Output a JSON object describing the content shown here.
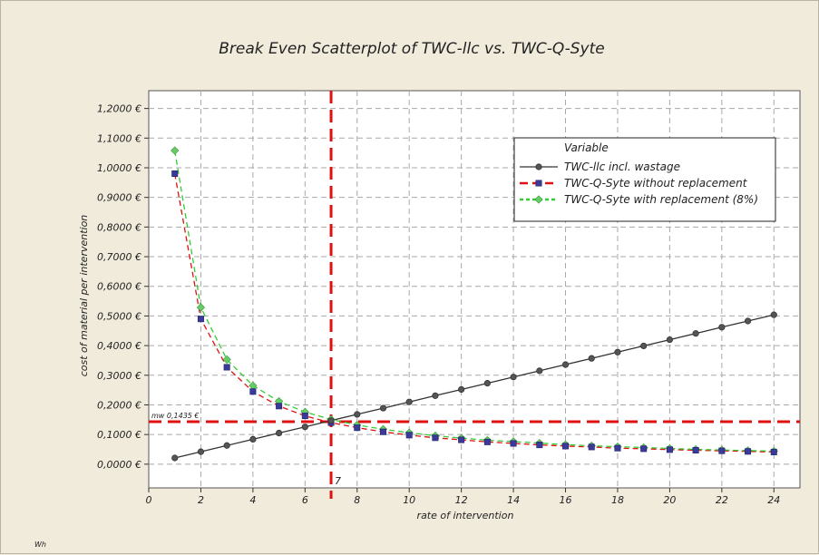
{
  "chart_data": {
    "type": "line",
    "title": "Break Even Scatterplot of TWC-llc vs. TWC-Q-Syte",
    "xlabel": "rate of intervention",
    "ylabel": "cost of material per intervention",
    "xlim": [
      0,
      25
    ],
    "ylim": [
      -0.08,
      1.26
    ],
    "x_ticks": [
      0,
      2,
      4,
      6,
      8,
      10,
      12,
      14,
      16,
      18,
      20,
      22,
      24
    ],
    "x_tick_labels": [
      "0",
      "2",
      "4",
      "6",
      "8",
      "10",
      "12",
      "14",
      "16",
      "18",
      "20",
      "22",
      "24"
    ],
    "y_ticks": [
      0.0,
      0.1,
      0.2,
      0.3,
      0.4,
      0.5,
      0.6,
      0.7,
      0.8,
      0.9,
      1.0,
      1.1,
      1.2
    ],
    "y_tick_labels": [
      "0,0000 €",
      "0,1000 €",
      "0,2000 €",
      "0,3000 €",
      "0,4000 €",
      "0,5000 €",
      "0,6000 €",
      "0,7000 €",
      "0,8000 €",
      "0,9000 €",
      "1,0000 €",
      "1,1000 €",
      "1,2000 €"
    ],
    "grid": true,
    "legend_position": "top-right",
    "legend_title": "Variable",
    "x": [
      1,
      2,
      3,
      4,
      5,
      6,
      7,
      8,
      9,
      10,
      11,
      12,
      13,
      14,
      15,
      16,
      17,
      18,
      19,
      20,
      21,
      22,
      23,
      24
    ],
    "series": [
      {
        "name": "TWC-llc incl. wastage",
        "color": "#333333",
        "marker": "circle",
        "line": "solid",
        "values": [
          0.021,
          0.042,
          0.063,
          0.084,
          0.105,
          0.126,
          0.147,
          0.168,
          0.189,
          0.21,
          0.231,
          0.252,
          0.273,
          0.294,
          0.315,
          0.336,
          0.357,
          0.378,
          0.399,
          0.42,
          0.441,
          0.462,
          0.483,
          0.504
        ]
      },
      {
        "name": "TWC-Q-Syte without replacement",
        "color": "#e01010",
        "marker_color": "#3a3a9a",
        "marker": "square",
        "line": "dashed",
        "values": [
          0.98,
          0.49,
          0.327,
          0.245,
          0.196,
          0.163,
          0.14,
          0.123,
          0.109,
          0.098,
          0.089,
          0.082,
          0.075,
          0.07,
          0.065,
          0.061,
          0.058,
          0.054,
          0.052,
          0.049,
          0.047,
          0.045,
          0.043,
          0.041
        ]
      },
      {
        "name": "TWC-Q-Syte with replacement (8%)",
        "color": "#33cc33",
        "marker_color": "#66cc66",
        "marker": "diamond",
        "line": "dashed",
        "values": [
          1.058,
          0.529,
          0.353,
          0.265,
          0.212,
          0.176,
          0.151,
          0.132,
          0.118,
          0.106,
          0.096,
          0.088,
          0.081,
          0.076,
          0.071,
          0.066,
          0.062,
          0.059,
          0.056,
          0.053,
          0.05,
          0.048,
          0.046,
          0.044
        ]
      }
    ],
    "reference_lines": [
      {
        "orientation": "horizontal",
        "value": 0.1435,
        "label": "mw 0,1435 €",
        "color": "#e01010"
      },
      {
        "orientation": "vertical",
        "value": 7,
        "label": "7",
        "color": "#e01010"
      }
    ],
    "footnote": "Wh"
  }
}
